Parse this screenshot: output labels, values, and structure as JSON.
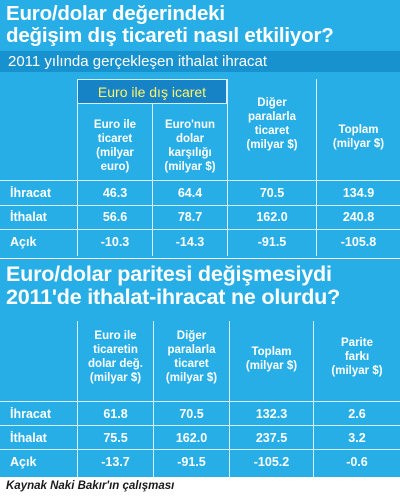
{
  "section1": {
    "title_line1": "Euro/dolar değerindeki",
    "title_line2": "değişim dış ticareti nasıl etkiliyor?",
    "subtitle": "2011 yılında gerçekleşen ithalat  ihracat",
    "group_header": "Euro ile dış icaret",
    "columns": [
      "Euro ile\nticaret\n(milyar\neuro)",
      "Euro'nun\ndolar\nkarşılığı\n(milyar $)",
      "Diğer\nparalarla\nticaret\n(milyar $)",
      "Toplam\n(milyar $)"
    ],
    "rows": [
      {
        "label": "İhracat",
        "values": [
          "46.3",
          "64.4",
          "70.5",
          "134.9"
        ]
      },
      {
        "label": "İthalat",
        "values": [
          "56.6",
          "78.7",
          "162.0",
          "240.8"
        ]
      },
      {
        "label": "Açık",
        "values": [
          "-10.3",
          "-14.3",
          "-91.5",
          "-105.8"
        ]
      }
    ]
  },
  "section2": {
    "title_line1": "Euro/dolar paritesi değişmesiydi",
    "title_line2": "2011'de ithalat-ihracat ne olurdu?",
    "columns": [
      "Euro ile\nticaretin\ndolar değ.\n(milyar $)",
      "Diğer\nparalarla\nticaret\n(milyar $)",
      "Toplam\n(milyar $)",
      "Parite\nfarkı\n(milyar $)"
    ],
    "rows": [
      {
        "label": "İhracat",
        "values": [
          "61.8",
          "70.5",
          "132.3",
          "2.6"
        ]
      },
      {
        "label": "İthalat",
        "values": [
          "75.5",
          "162.0",
          "237.5",
          "3.2"
        ]
      },
      {
        "label": "Açık",
        "values": [
          "-13.7",
          "-91.5",
          "-105.2",
          "-0.6"
        ]
      }
    ]
  },
  "source": "Kaynak Naki Bakır'ın çalışması",
  "colors": {
    "panel": "#28aee6",
    "subtitle_band": "#1892cf",
    "group_header_bg": "#1583c6",
    "group_header_text": "#fff26a",
    "text": "#ffffff"
  }
}
